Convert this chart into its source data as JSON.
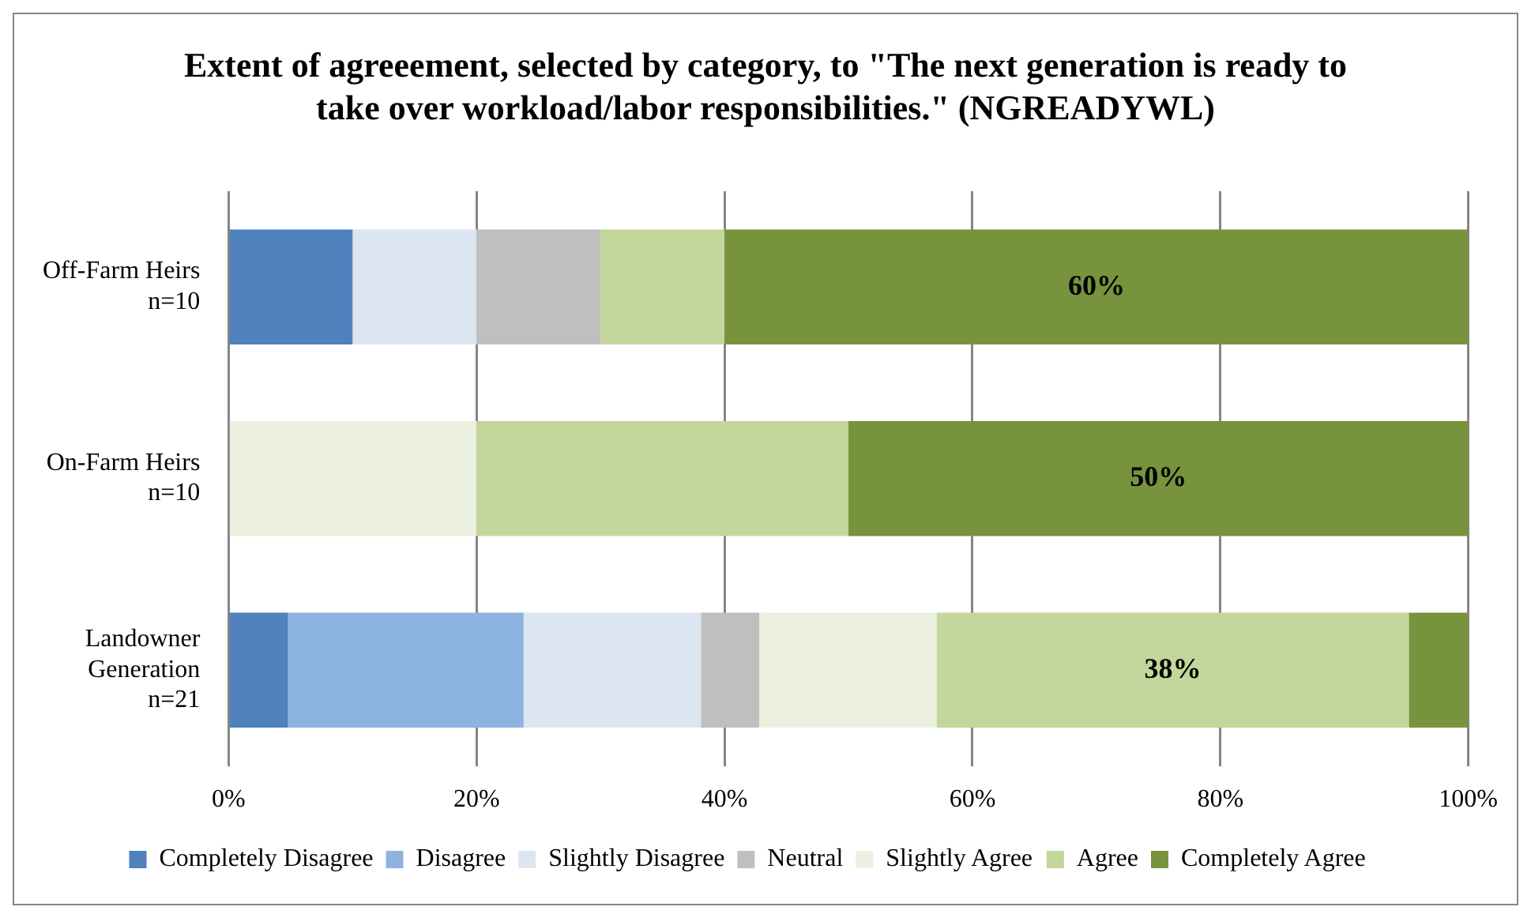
{
  "chart_data": {
    "type": "bar",
    "orientation": "horizontal",
    "stacked": true,
    "title": "Extent of agreeement, selected by category, to \"The next generation is ready to take over workload/labor responsibilities.\" (NGREADYWL)",
    "categories": [
      "Off-Farm Heirs\nn=10",
      "On-Farm Heirs\nn=10",
      "Landowner\nGeneration\nn=21"
    ],
    "series": [
      {
        "name": "Completely Disagree",
        "color": "#4f81bd",
        "values": [
          10,
          0,
          4.8
        ]
      },
      {
        "name": "Disagree",
        "color": "#8db3e2",
        "values": [
          0,
          0,
          19.0
        ]
      },
      {
        "name": "Slightly Disagree",
        "color": "#dce6f2",
        "values": [
          10,
          0,
          14.3
        ]
      },
      {
        "name": "Neutral",
        "color": "#bfbfbf",
        "values": [
          10,
          0,
          4.7
        ]
      },
      {
        "name": "Slightly Agree",
        "color": "#ebf1de",
        "values": [
          0,
          20,
          14.3
        ]
      },
      {
        "name": "Agree",
        "color": "#c3d69b",
        "values": [
          10,
          30,
          38.1
        ],
        "value_labels": [
          null,
          null,
          "38%"
        ]
      },
      {
        "name": "Completely Agree",
        "color": "#77933c",
        "values": [
          60,
          50,
          4.8
        ],
        "value_labels": [
          "60%",
          "50%",
          null
        ]
      }
    ],
    "xlim": [
      0,
      100
    ],
    "xticks": [
      {
        "value": 0,
        "label": "0%"
      },
      {
        "value": 20,
        "label": "20%"
      },
      {
        "value": 40,
        "label": "40%"
      },
      {
        "value": 60,
        "label": "60%"
      },
      {
        "value": 80,
        "label": "80%"
      },
      {
        "value": 100,
        "label": "100%"
      }
    ],
    "grid": "x",
    "legend": "bottom"
  }
}
